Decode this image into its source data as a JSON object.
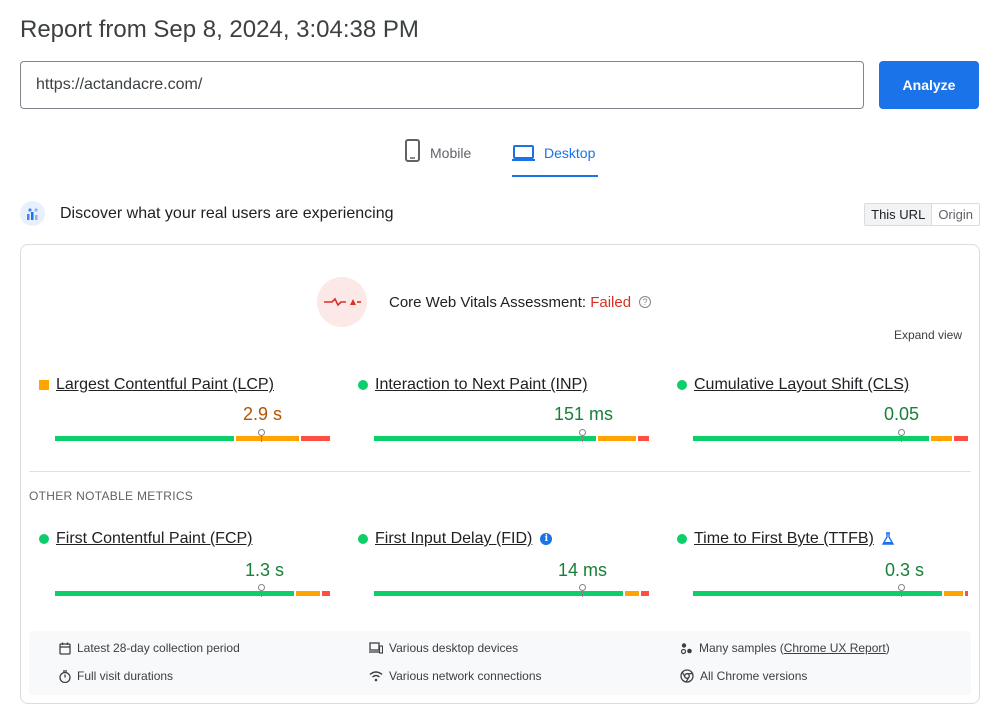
{
  "report_title": "Report from Sep 8, 2024, 3:04:38 PM",
  "url_input": {
    "value": "https://actandacre.com/"
  },
  "analyze_label": "Analyze",
  "tabs": {
    "mobile": "Mobile",
    "desktop": "Desktop",
    "active": "Desktop"
  },
  "crux": {
    "title": "Discover what your real users are experiencing",
    "toggle": {
      "this_url": "This URL",
      "origin": "Origin",
      "selected": "This URL"
    }
  },
  "assessment": {
    "label": "Core Web Vitals Assessment:",
    "status": "Failed"
  },
  "expand_view": "Expand view",
  "colors": {
    "good": "#0cce6b",
    "needs_improvement": "#ffa400",
    "poor": "#ff4e42",
    "accent": "#1a73e8",
    "failed": "#d93025"
  },
  "core_metrics": [
    {
      "name": "Largest Contentful Paint (LCP)",
      "value": "2.9 s",
      "rating": "needs-improvement",
      "distribution": {
        "good": 0.66,
        "ni": 0.23,
        "poor": 0.11
      }
    },
    {
      "name": "Interaction to Next Paint (INP)",
      "value": "151 ms",
      "rating": "good",
      "distribution": {
        "good": 0.82,
        "ni": 0.14,
        "poor": 0.04
      }
    },
    {
      "name": "Cumulative Layout Shift (CLS)",
      "value": "0.05",
      "rating": "good",
      "distribution": {
        "good": 0.87,
        "ni": 0.08,
        "poor": 0.05
      }
    }
  ],
  "other_title": "OTHER NOTABLE METRICS",
  "other_metrics": [
    {
      "name": "First Contentful Paint (FCP)",
      "value": "1.3 s",
      "rating": "good",
      "distribution": {
        "good": 0.88,
        "ni": 0.09,
        "poor": 0.03
      }
    },
    {
      "name": "First Input Delay (FID)",
      "value": "14 ms",
      "rating": "good",
      "distribution": {
        "good": 0.92,
        "ni": 0.05,
        "poor": 0.03
      },
      "icon": "info-icon"
    },
    {
      "name": "Time to First Byte (TTFB)",
      "value": "0.3 s",
      "rating": "good",
      "distribution": {
        "good": 0.92,
        "ni": 0.07,
        "poor": 0.01
      },
      "icon": "flask-icon"
    }
  ],
  "footer": {
    "collection_period": "Latest 28-day collection period",
    "devices": "Various desktop devices",
    "samples_prefix": "Many samples (",
    "samples_link": "Chrome UX Report",
    "samples_suffix": ")",
    "durations": "Full visit durations",
    "network": "Various network connections",
    "versions": "All Chrome versions"
  }
}
